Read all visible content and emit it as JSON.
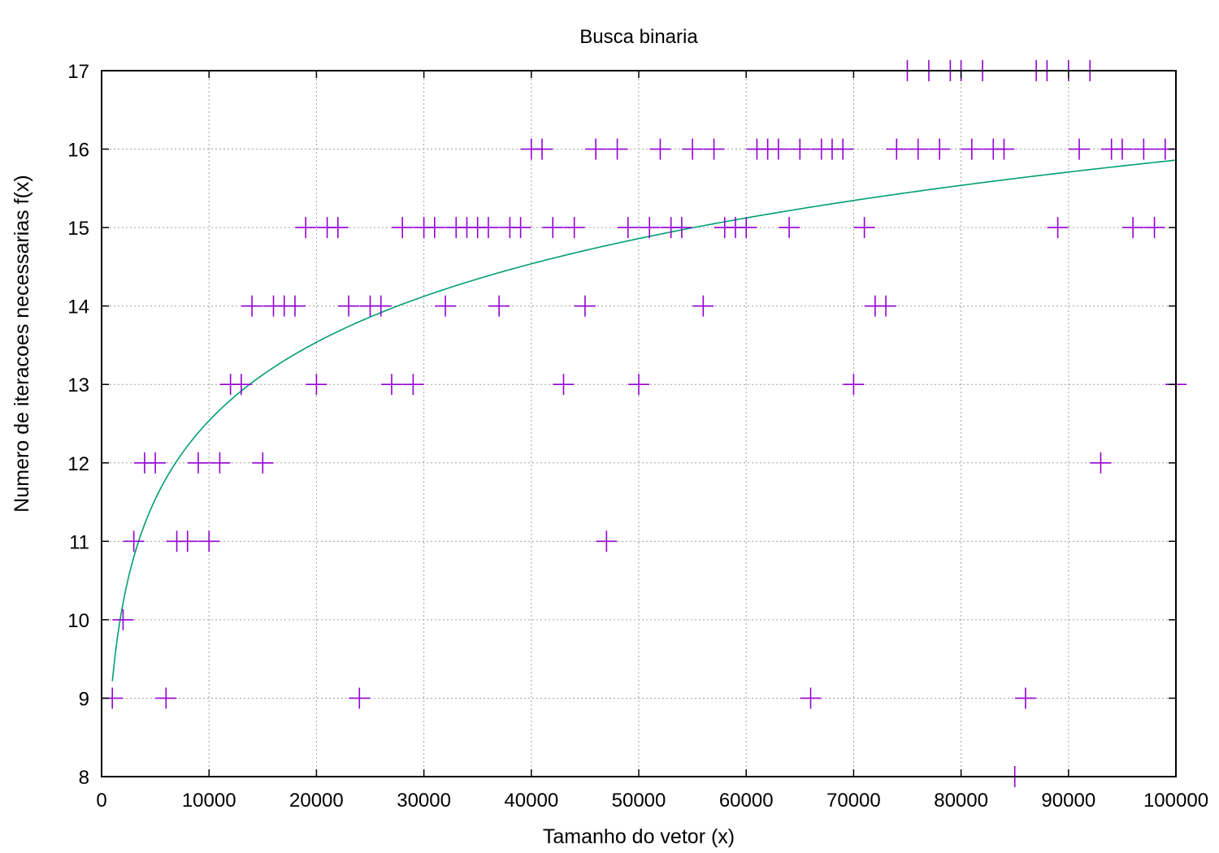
{
  "chart_data": {
    "type": "scatter",
    "title": "Busca binaria",
    "xlabel": "Tamanho do vetor (x)",
    "ylabel": "Numero de iteracoes necessarias f(x)",
    "xlim": [
      0,
      100000
    ],
    "ylim": [
      8,
      17
    ],
    "xticks": [
      "0",
      "10000",
      "20000",
      "30000",
      "40000",
      "50000",
      "60000",
      "70000",
      "80000",
      "90000",
      "100000"
    ],
    "yticks": [
      "8",
      "9",
      "10",
      "11",
      "12",
      "13",
      "14",
      "15",
      "16",
      "17"
    ],
    "grid": true,
    "marker": "plus",
    "colors": {
      "points": "#9400d3",
      "curve": "#009e73",
      "grid": "#a0a0a0"
    },
    "series": [
      {
        "kind": "points",
        "points": [
          [
            1000,
            9
          ],
          [
            2000,
            10
          ],
          [
            3000,
            11
          ],
          [
            4000,
            12
          ],
          [
            5000,
            12
          ],
          [
            6000,
            9
          ],
          [
            7000,
            11
          ],
          [
            8000,
            11
          ],
          [
            9000,
            12
          ],
          [
            10000,
            11
          ],
          [
            11000,
            12
          ],
          [
            12000,
            13
          ],
          [
            13000,
            13
          ],
          [
            14000,
            14
          ],
          [
            15000,
            12
          ],
          [
            16000,
            14
          ],
          [
            17000,
            14
          ],
          [
            18000,
            14
          ],
          [
            19000,
            15
          ],
          [
            20000,
            13
          ],
          [
            21000,
            15
          ],
          [
            22000,
            15
          ],
          [
            23000,
            14
          ],
          [
            24000,
            9
          ],
          [
            25000,
            14
          ],
          [
            26000,
            14
          ],
          [
            27000,
            13
          ],
          [
            28000,
            15
          ],
          [
            29000,
            13
          ],
          [
            30000,
            15
          ],
          [
            31000,
            15
          ],
          [
            32000,
            14
          ],
          [
            33000,
            15
          ],
          [
            34000,
            15
          ],
          [
            35000,
            15
          ],
          [
            36000,
            15
          ],
          [
            37000,
            14
          ],
          [
            38000,
            15
          ],
          [
            39000,
            15
          ],
          [
            40000,
            16
          ],
          [
            41000,
            16
          ],
          [
            42000,
            15
          ],
          [
            43000,
            13
          ],
          [
            44000,
            15
          ],
          [
            45000,
            14
          ],
          [
            46000,
            16
          ],
          [
            47000,
            11
          ],
          [
            48000,
            16
          ],
          [
            49000,
            15
          ],
          [
            50000,
            13
          ],
          [
            51000,
            15
          ],
          [
            52000,
            16
          ],
          [
            53000,
            15
          ],
          [
            54000,
            15
          ],
          [
            55000,
            16
          ],
          [
            56000,
            14
          ],
          [
            57000,
            16
          ],
          [
            58000,
            15
          ],
          [
            59000,
            15
          ],
          [
            60000,
            15
          ],
          [
            61000,
            16
          ],
          [
            62000,
            16
          ],
          [
            63000,
            16
          ],
          [
            64000,
            15
          ],
          [
            65000,
            16
          ],
          [
            66000,
            9
          ],
          [
            67000,
            16
          ],
          [
            68000,
            16
          ],
          [
            69000,
            16
          ],
          [
            70000,
            13
          ],
          [
            71000,
            15
          ],
          [
            72000,
            14
          ],
          [
            73000,
            14
          ],
          [
            74000,
            16
          ],
          [
            75000,
            17
          ],
          [
            76000,
            16
          ],
          [
            77000,
            17
          ],
          [
            78000,
            16
          ],
          [
            79000,
            17
          ],
          [
            80000,
            17
          ],
          [
            81000,
            16
          ],
          [
            82000,
            17
          ],
          [
            83000,
            16
          ],
          [
            84000,
            16
          ],
          [
            85000,
            8
          ],
          [
            86000,
            9
          ],
          [
            87000,
            17
          ],
          [
            88000,
            17
          ],
          [
            89000,
            15
          ],
          [
            90000,
            17
          ],
          [
            91000,
            16
          ],
          [
            92000,
            17
          ],
          [
            93000,
            12
          ],
          [
            94000,
            16
          ],
          [
            95000,
            16
          ],
          [
            96000,
            15
          ],
          [
            97000,
            16
          ],
          [
            98000,
            15
          ],
          [
            99000,
            16
          ],
          [
            100000,
            13
          ]
        ]
      },
      {
        "kind": "curve",
        "function": "log2(x)-0.75",
        "x_range": [
          1000,
          100000
        ]
      }
    ]
  }
}
